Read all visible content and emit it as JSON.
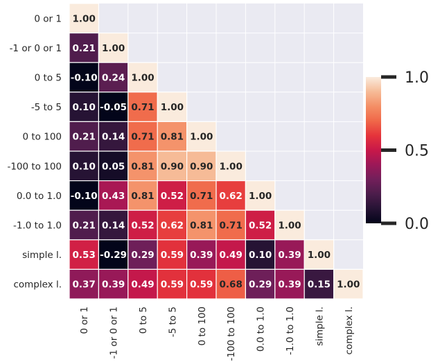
{
  "chart_data": {
    "type": "heatmap",
    "mask": "upper-triangle",
    "categories": [
      "0 or 1",
      "-1 or 0 or 1",
      "0 to 5",
      "-5 to 5",
      "0 to 100",
      "-100 to 100",
      "0.0 to 1.0",
      "-1.0 to 1.0",
      "simple l.",
      "complex l."
    ],
    "matrix": [
      [
        1.0
      ],
      [
        0.21,
        1.0
      ],
      [
        -0.1,
        0.24,
        1.0
      ],
      [
        0.1,
        -0.05,
        0.71,
        1.0
      ],
      [
        0.21,
        0.14,
        0.71,
        0.81,
        1.0
      ],
      [
        0.1,
        0.05,
        0.81,
        0.9,
        0.9,
        1.0
      ],
      [
        -0.1,
        0.43,
        0.81,
        0.52,
        0.71,
        0.62,
        1.0
      ],
      [
        0.21,
        0.14,
        0.52,
        0.62,
        0.81,
        0.71,
        0.52,
        1.0
      ],
      [
        0.53,
        -0.29,
        0.29,
        0.59,
        0.39,
        0.49,
        0.1,
        0.39,
        1.0
      ],
      [
        0.37,
        0.39,
        0.49,
        0.59,
        0.59,
        0.68,
        0.29,
        0.39,
        0.15,
        1.0
      ]
    ],
    "colorbar": {
      "ticks": [
        "0.0",
        "0.5",
        "1.0"
      ],
      "range": [
        0.0,
        1.0
      ],
      "colormap": "rocket"
    },
    "colors": {
      "background": "#eaeaf2",
      "cell_border": "#ffffff"
    }
  }
}
